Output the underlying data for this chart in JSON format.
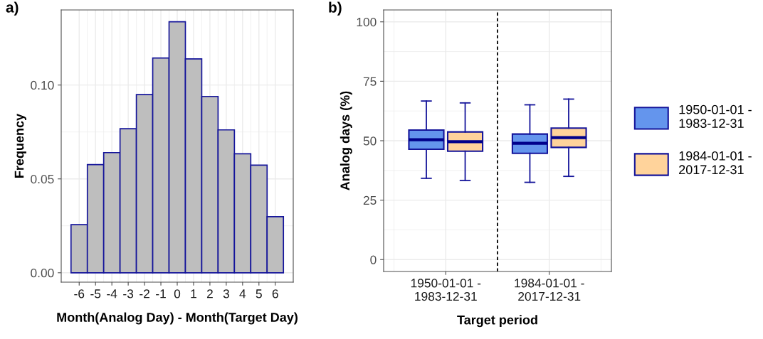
{
  "chart_data": [
    {
      "type": "histogram",
      "title": "a)",
      "xlabel": "Month(Analog Day) - Month(Target Day)",
      "ylabel": "Frequency",
      "color": "#bebebe",
      "bins": [
        -6.5,
        -5.5,
        -4.5,
        -3.5,
        -2.5,
        -1.5,
        -0.5,
        0.5,
        1.5,
        2.5,
        3.5,
        4.5,
        5.5,
        6.5
      ],
      "values": [
        0.0256,
        0.0576,
        0.064,
        0.0767,
        0.0949,
        0.1144,
        0.1337,
        0.1139,
        0.0939,
        0.0761,
        0.0634,
        0.0573,
        0.0299
      ],
      "xlim": [
        -7.1,
        7.1
      ],
      "xticks": [
        -6,
        -5,
        -4,
        -3,
        -2,
        -1,
        0,
        1,
        2,
        3,
        4,
        5,
        6
      ],
      "ylim": [
        -0.005,
        0.14
      ],
      "yticks": [
        {
          "value": 0,
          "label": "0.00"
        },
        {
          "value": 0.05,
          "label": "0.05"
        },
        {
          "value": 0.1,
          "label": "0.10"
        }
      ],
      "grid": true
    },
    {
      "type": "box",
      "title": "b)",
      "xlabel": "Target period",
      "ylabel": "Analog days (%)",
      "categories": [
        "1950-01-01 -\n1983-12-31",
        "1984-01-01 -\n2017-12-31"
      ],
      "series": [
        {
          "name": "1950-01-01 -\n1983-12-31",
          "color": "#6495ed",
          "boxes": [
            {
              "low": 34.2,
              "q1": 46.4,
              "median": 50.4,
              "q3": 54.5,
              "high": 66.7
            },
            {
              "low": 32.5,
              "q1": 44.7,
              "median": 48.9,
              "q3": 52.8,
              "high": 65.1
            }
          ]
        },
        {
          "name": "1984-01-01 -\n2017-12-31",
          "color": "#ffd39b",
          "boxes": [
            {
              "low": 33.3,
              "q1": 45.6,
              "median": 49.6,
              "q3": 53.7,
              "high": 65.9
            },
            {
              "low": 35.0,
              "q1": 47.2,
              "median": 51.3,
              "q3": 55.3,
              "high": 67.5
            }
          ]
        }
      ],
      "ylim": [
        -5,
        105
      ],
      "yticks": [
        0,
        25,
        50,
        75,
        100
      ],
      "grid": true,
      "legend": "right"
    }
  ]
}
